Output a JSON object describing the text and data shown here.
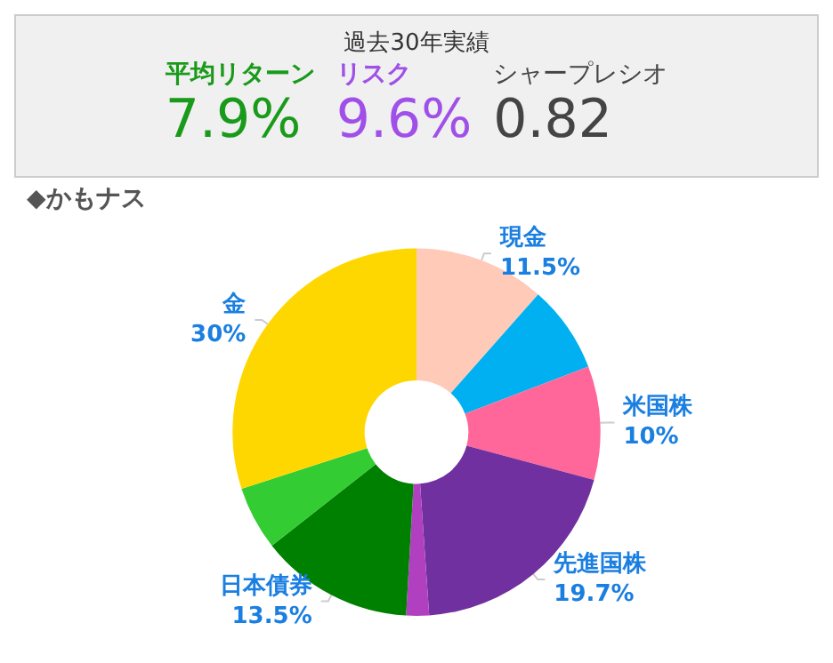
{
  "chart_data": [
    {
      "type": "other",
      "title": "過去30年実績",
      "annotations": [
        "平均リターン",
        "7.9%",
        "リスク",
        "9.6%",
        "シャープレシオ",
        "0.82"
      ]
    },
    {
      "type": "donut",
      "title": "◆かもナス",
      "categories": [
        "現金",
        null,
        "米国株",
        "先進国株",
        null,
        "日本債券",
        null,
        "金"
      ],
      "values": [
        11.5,
        7.7,
        10,
        19.7,
        2,
        13.5,
        5.6,
        30
      ],
      "value_labels": [
        "11.5%",
        null,
        "10%",
        "19.7%",
        null,
        "13.5%",
        null,
        "30%"
      ],
      "colors": [
        "#ffcbb8",
        "#00b0f0",
        "#ff6699",
        "#7030a0",
        "#b040c0",
        "#008000",
        "#33cc33",
        "#ffd700"
      ]
    }
  ]
}
